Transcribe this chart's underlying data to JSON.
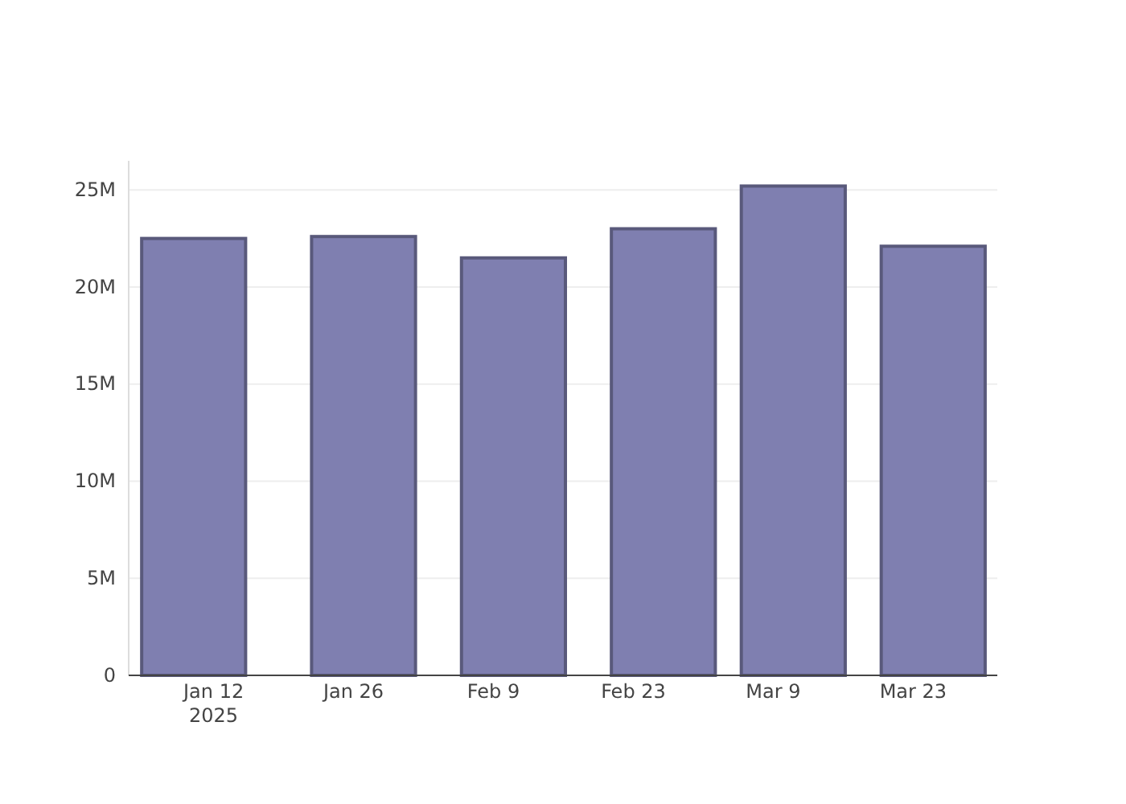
{
  "chart_data": {
    "type": "bar",
    "x": [
      "2025-01-10",
      "2025-01-27",
      "2025-02-11",
      "2025-02-26",
      "2025-03-11",
      "2025-03-25"
    ],
    "values": [
      22.5,
      22.6,
      21.5,
      23.0,
      25.2,
      22.1
    ],
    "color": "#7f7fb0",
    "xlim": [
      "2025-01-03T12:00",
      "2025-03-31T10:00"
    ],
    "xticks": [
      {
        "value": "2025-01-12",
        "label": "Jan 12\n2025"
      },
      {
        "value": "2025-01-26",
        "label": "Jan 26"
      },
      {
        "value": "2025-02-09",
        "label": "Feb 9"
      },
      {
        "value": "2025-02-23",
        "label": "Feb 23"
      },
      {
        "value": "2025-03-09",
        "label": "Mar 9"
      },
      {
        "value": "2025-03-23",
        "label": "Mar 23"
      }
    ],
    "ylim": [
      0,
      26.5
    ],
    "yticks": [
      {
        "value": 0,
        "label": "0"
      },
      {
        "value": 5,
        "label": "5M"
      },
      {
        "value": 10,
        "label": "10M"
      },
      {
        "value": 15,
        "label": "15M"
      },
      {
        "value": 20,
        "label": "20M"
      },
      {
        "value": 25,
        "label": "25M"
      }
    ],
    "grid": "y"
  }
}
